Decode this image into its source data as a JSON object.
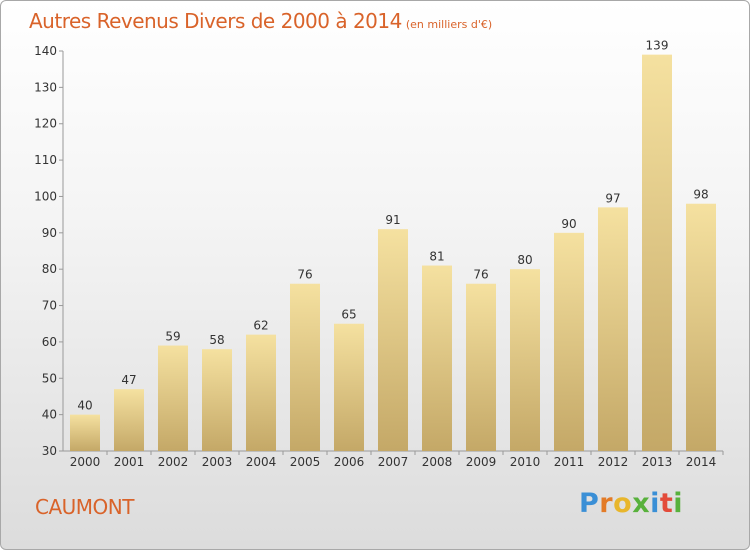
{
  "title": "Autres Revenus Divers de 2000 à 2014",
  "subtitle": "(en milliers d'€)",
  "place": "CAUMONT",
  "logo": {
    "letters": [
      "P",
      "r",
      "o",
      "x",
      "i",
      "t",
      "i"
    ],
    "colors": [
      "#3a8fd6",
      "#e37b27",
      "#e8b62c",
      "#58b13c",
      "#3a8fd6",
      "#e34b3a",
      "#58b13c"
    ]
  },
  "colors": {
    "accent": "#d9632a",
    "bar_top": "#f5e1a0",
    "bar_bottom": "#c4a867"
  },
  "chart_data": {
    "type": "bar",
    "title": "Autres Revenus Divers de 2000 à 2014",
    "subtitle": "(en milliers d'€)",
    "categories": [
      "2000",
      "2001",
      "2002",
      "2003",
      "2004",
      "2005",
      "2006",
      "2007",
      "2008",
      "2009",
      "2010",
      "2011",
      "2012",
      "2013",
      "2014"
    ],
    "values": [
      40,
      47,
      59,
      58,
      62,
      76,
      65,
      91,
      81,
      76,
      80,
      90,
      97,
      139,
      98
    ],
    "ylim": [
      30,
      140
    ],
    "yticks": [
      30,
      40,
      50,
      60,
      70,
      80,
      90,
      100,
      110,
      120,
      130,
      140
    ],
    "grid": false,
    "data_labels": true
  }
}
